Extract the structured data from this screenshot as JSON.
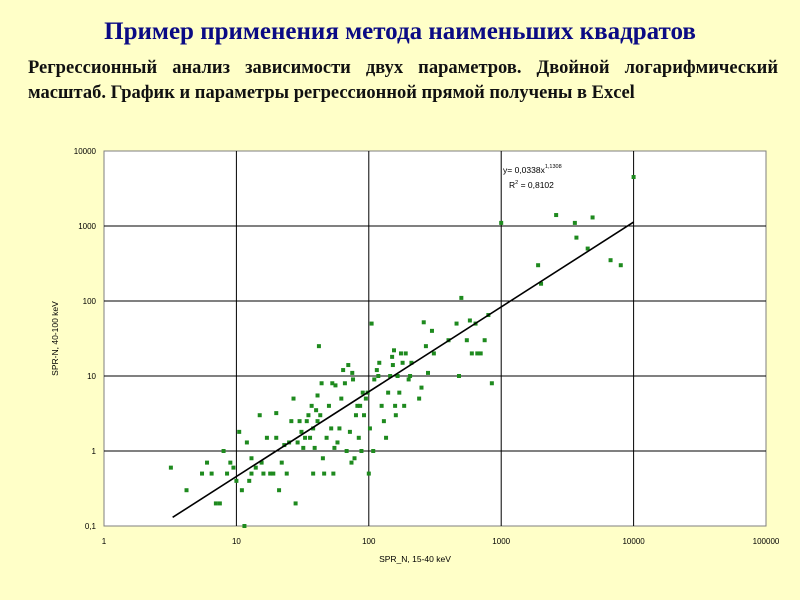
{
  "slide": {
    "title": "Пример применения метода наименьших квадратов",
    "subtitle": "Регрессионный анализ зависимости двух параметров. Двойной логарифмический масштаб. График и параметры регрессионной прямой получены в Excel"
  },
  "chart_data": {
    "type": "scatter",
    "xscale": "log",
    "yscale": "log",
    "xlabel": "SPR_N, 15-40 keV",
    "ylabel": "SPR-N, 40-100 keV",
    "xlim": [
      1,
      100000
    ],
    "ylim": [
      0.1,
      10000
    ],
    "x_tick_labels": [
      "1",
      "10",
      "100",
      "1000",
      "10000",
      "100000"
    ],
    "y_tick_labels": [
      "0,1",
      "1",
      "10",
      "100",
      "1000",
      "10000"
    ],
    "grid": true,
    "legend": "none",
    "point_color": "#1e8a1e",
    "trendline": {
      "type": "power",
      "coefficient": 0.0338,
      "exponent": 1.1308,
      "x_range": [
        3.3,
        10000
      ],
      "equation_prefix": "y= 0,0338x",
      "equation_exponent": "1,1308",
      "r2_prefix": "R",
      "r2_exponent": "2",
      "r2_suffix": " = 0,8102",
      "color": "#000000"
    },
    "points": [
      [
        3.2,
        0.6
      ],
      [
        4.2,
        0.3
      ],
      [
        5.5,
        0.5
      ],
      [
        6,
        0.7
      ],
      [
        6.5,
        0.5
      ],
      [
        7,
        0.2
      ],
      [
        7.5,
        0.2
      ],
      [
        8,
        1
      ],
      [
        8.5,
        0.5
      ],
      [
        9,
        0.7
      ],
      [
        9.5,
        0.6
      ],
      [
        10,
        0.4
      ],
      [
        10.5,
        1.8
      ],
      [
        11,
        0.3
      ],
      [
        11.5,
        0.1
      ],
      [
        12,
        1.3
      ],
      [
        12.5,
        0.4
      ],
      [
        13,
        0.8
      ],
      [
        13,
        0.5
      ],
      [
        14,
        0.6
      ],
      [
        15,
        3
      ],
      [
        15.5,
        0.7
      ],
      [
        16,
        0.5
      ],
      [
        17,
        1.5
      ],
      [
        18,
        0.5
      ],
      [
        19,
        0.5
      ],
      [
        20,
        1.5
      ],
      [
        20,
        3.2
      ],
      [
        21,
        0.3
      ],
      [
        22,
        0.7
      ],
      [
        23,
        1.2
      ],
      [
        24,
        0.5
      ],
      [
        25,
        1.3
      ],
      [
        26,
        2.5
      ],
      [
        27,
        5
      ],
      [
        28,
        0.2
      ],
      [
        29,
        1.3
      ],
      [
        30,
        2.5
      ],
      [
        31,
        1.8
      ],
      [
        32,
        1.1
      ],
      [
        33,
        1.5
      ],
      [
        34,
        2.5
      ],
      [
        35,
        3
      ],
      [
        36,
        1.5
      ],
      [
        37,
        4
      ],
      [
        38,
        2
      ],
      [
        38,
        0.5
      ],
      [
        39,
        1.1
      ],
      [
        40,
        3.5
      ],
      [
        41,
        2.5
      ],
      [
        41,
        5.5
      ],
      [
        42,
        25
      ],
      [
        43,
        3
      ],
      [
        44,
        8
      ],
      [
        45,
        0.8
      ],
      [
        46,
        0.5
      ],
      [
        48,
        1.5
      ],
      [
        50,
        4
      ],
      [
        52,
        2
      ],
      [
        53,
        8
      ],
      [
        54,
        0.5
      ],
      [
        55,
        1.1
      ],
      [
        56,
        7.5
      ],
      [
        58,
        1.3
      ],
      [
        60,
        2
      ],
      [
        62,
        5
      ],
      [
        64,
        12
      ],
      [
        66,
        8
      ],
      [
        68,
        1
      ],
      [
        70,
        14
      ],
      [
        72,
        1.8
      ],
      [
        74,
        0.7
      ],
      [
        75,
        11
      ],
      [
        76,
        9
      ],
      [
        78,
        0.8
      ],
      [
        80,
        3
      ],
      [
        82,
        4
      ],
      [
        84,
        1.5
      ],
      [
        86,
        4
      ],
      [
        88,
        1
      ],
      [
        90,
        6
      ],
      [
        92,
        3
      ],
      [
        95,
        5
      ],
      [
        98,
        6
      ],
      [
        100,
        0.5
      ],
      [
        102,
        2
      ],
      [
        105,
        50
      ],
      [
        108,
        1
      ],
      [
        110,
        9
      ],
      [
        115,
        12
      ],
      [
        118,
        10
      ],
      [
        120,
        15
      ],
      [
        125,
        4
      ],
      [
        130,
        2.5
      ],
      [
        135,
        1.5
      ],
      [
        140,
        6
      ],
      [
        145,
        10
      ],
      [
        150,
        18
      ],
      [
        152,
        14
      ],
      [
        155,
        22
      ],
      [
        158,
        4
      ],
      [
        160,
        3
      ],
      [
        165,
        10
      ],
      [
        170,
        6
      ],
      [
        175,
        20
      ],
      [
        180,
        15
      ],
      [
        185,
        4
      ],
      [
        190,
        20
      ],
      [
        200,
        9
      ],
      [
        205,
        10
      ],
      [
        210,
        15
      ],
      [
        240,
        5
      ],
      [
        250,
        7
      ],
      [
        260,
        52
      ],
      [
        270,
        25
      ],
      [
        280,
        11
      ],
      [
        300,
        40
      ],
      [
        310,
        20
      ],
      [
        400,
        30
      ],
      [
        460,
        50
      ],
      [
        480,
        10
      ],
      [
        500,
        110
      ],
      [
        550,
        30
      ],
      [
        580,
        55
      ],
      [
        600,
        20
      ],
      [
        640,
        50
      ],
      [
        660,
        20
      ],
      [
        700,
        20
      ],
      [
        750,
        30
      ],
      [
        800,
        65
      ],
      [
        850,
        8
      ],
      [
        1000,
        1100
      ],
      [
        1900,
        300
      ],
      [
        2000,
        170
      ],
      [
        2600,
        1400
      ],
      [
        3600,
        1100
      ],
      [
        3700,
        700
      ],
      [
        4500,
        500
      ],
      [
        4900,
        1300
      ],
      [
        6700,
        350
      ],
      [
        8000,
        300
      ],
      [
        10000,
        4500
      ]
    ]
  }
}
